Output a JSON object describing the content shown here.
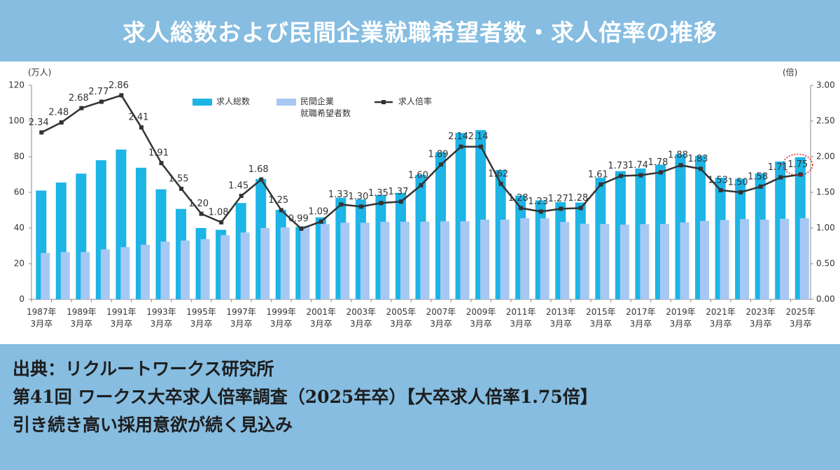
{
  "chart_data": {
    "type": "bar-line",
    "title": "求人総数および民間企業就職希望者数・求人倍率の推移",
    "y_label": "(万人)",
    "y2_label": "(倍)",
    "categories": [
      "1987年\n3月卒",
      null,
      "1989年\n3月卒",
      null,
      "1991年\n3月卒",
      null,
      "1993年\n3月卒",
      null,
      "1995年\n3月卒",
      null,
      "1997年\n3月卒",
      null,
      "1999年\n3月卒",
      null,
      "2001年\n3月卒",
      null,
      "2003年\n3月卒",
      null,
      "2005年\n3月卒",
      null,
      "2007年\n3月卒",
      null,
      "2009年\n3月卒",
      null,
      "2011年\n3月卒",
      null,
      "2013年\n3月卒",
      null,
      "2015年\n3月卒",
      null,
      "2017年\n3月卒",
      null,
      "2019年\n3月卒",
      null,
      "2021年\n3月卒",
      null,
      "2023年\n3月卒",
      null,
      "2025年\n3月卒"
    ],
    "series": [
      {
        "name": "求人総数",
        "color": "#1db4e6",
        "values": [
          61,
          65.5,
          70.5,
          78,
          84,
          73.8,
          61.7,
          50.7,
          40,
          39,
          54,
          67.5,
          50.2,
          40.7,
          46,
          57,
          56,
          58.5,
          59.7,
          69.8,
          82.5,
          93.3,
          94.9,
          72.5,
          58.2,
          55.5,
          54.5,
          54.3,
          68.2,
          71.9,
          73.4,
          75.5,
          81.4,
          80.5,
          68.2,
          67.6,
          70.6,
          77.3,
          79.7
        ]
      },
      {
        "name": "民間企業\n就職希望者数",
        "color": "#a8c8f4",
        "values": [
          26,
          26.5,
          26.5,
          28,
          29.3,
          30.6,
          32.4,
          33,
          33.8,
          36,
          37.5,
          40,
          40.3,
          41.2,
          42.2,
          43,
          43,
          43.5,
          43.5,
          43.6,
          43.8,
          43.8,
          44.7,
          44.7,
          45.5,
          45.4,
          43.4,
          42.4,
          42.3,
          41.9,
          42.2,
          42.3,
          43.2,
          44,
          44.5,
          45,
          44.7,
          45.2,
          45.5
        ]
      },
      {
        "name": "求人倍率",
        "color": "#333333",
        "axis": "y2",
        "values": [
          2.34,
          2.48,
          2.68,
          2.77,
          2.86,
          2.41,
          1.91,
          1.55,
          1.2,
          1.08,
          1.45,
          1.68,
          1.25,
          0.99,
          1.09,
          1.33,
          1.3,
          1.35,
          1.37,
          1.6,
          1.89,
          2.14,
          2.14,
          1.62,
          1.28,
          1.23,
          1.27,
          1.28,
          1.61,
          1.73,
          1.74,
          1.78,
          1.88,
          1.83,
          1.53,
          1.5,
          1.58,
          1.71,
          1.75
        ],
        "value_labels": [
          "2.34",
          "2.48",
          "2.68",
          "2.77",
          "2.86",
          "2.41",
          "1.91",
          "1.55",
          "1.20",
          "1.08",
          "1.45",
          "1.68",
          "1.25",
          "0.99",
          "1.09",
          "1.33",
          "1.30",
          "1.35",
          "1.37",
          "1.60",
          "1.89",
          "2.14",
          "2.14",
          "1.62",
          "1.28",
          "1.23",
          "1.27",
          "1.28",
          "1.61",
          "1.73",
          "1.74",
          "1.78",
          "1.88",
          "1.83",
          "1.53",
          "1.50",
          "1.58",
          "1.71",
          "1.75"
        ]
      }
    ],
    "ylim": [
      0,
      120
    ],
    "yticks": [
      0,
      20,
      40,
      60,
      80,
      100,
      120
    ],
    "y2lim": [
      0,
      3
    ],
    "y2ticks": [
      {
        "value": 0,
        "label": "0.00"
      },
      {
        "value": 0.5,
        "label": "0.50"
      },
      {
        "value": 1,
        "label": "1.00"
      },
      {
        "value": 1.5,
        "label": "1.50"
      },
      {
        "value": 2,
        "label": "2.00"
      },
      {
        "value": 2.5,
        "label": "2.50"
      },
      {
        "value": 3,
        "label": "3.00"
      }
    ],
    "grid": false
  },
  "source": [
    "出典：リクルートワークス研究所",
    "第41回 ワークス大卒求人倍率調査（2025年卒）【大卒求人倍率1.75倍】",
    "引き続き高い採用意欲が続く見込み"
  ]
}
